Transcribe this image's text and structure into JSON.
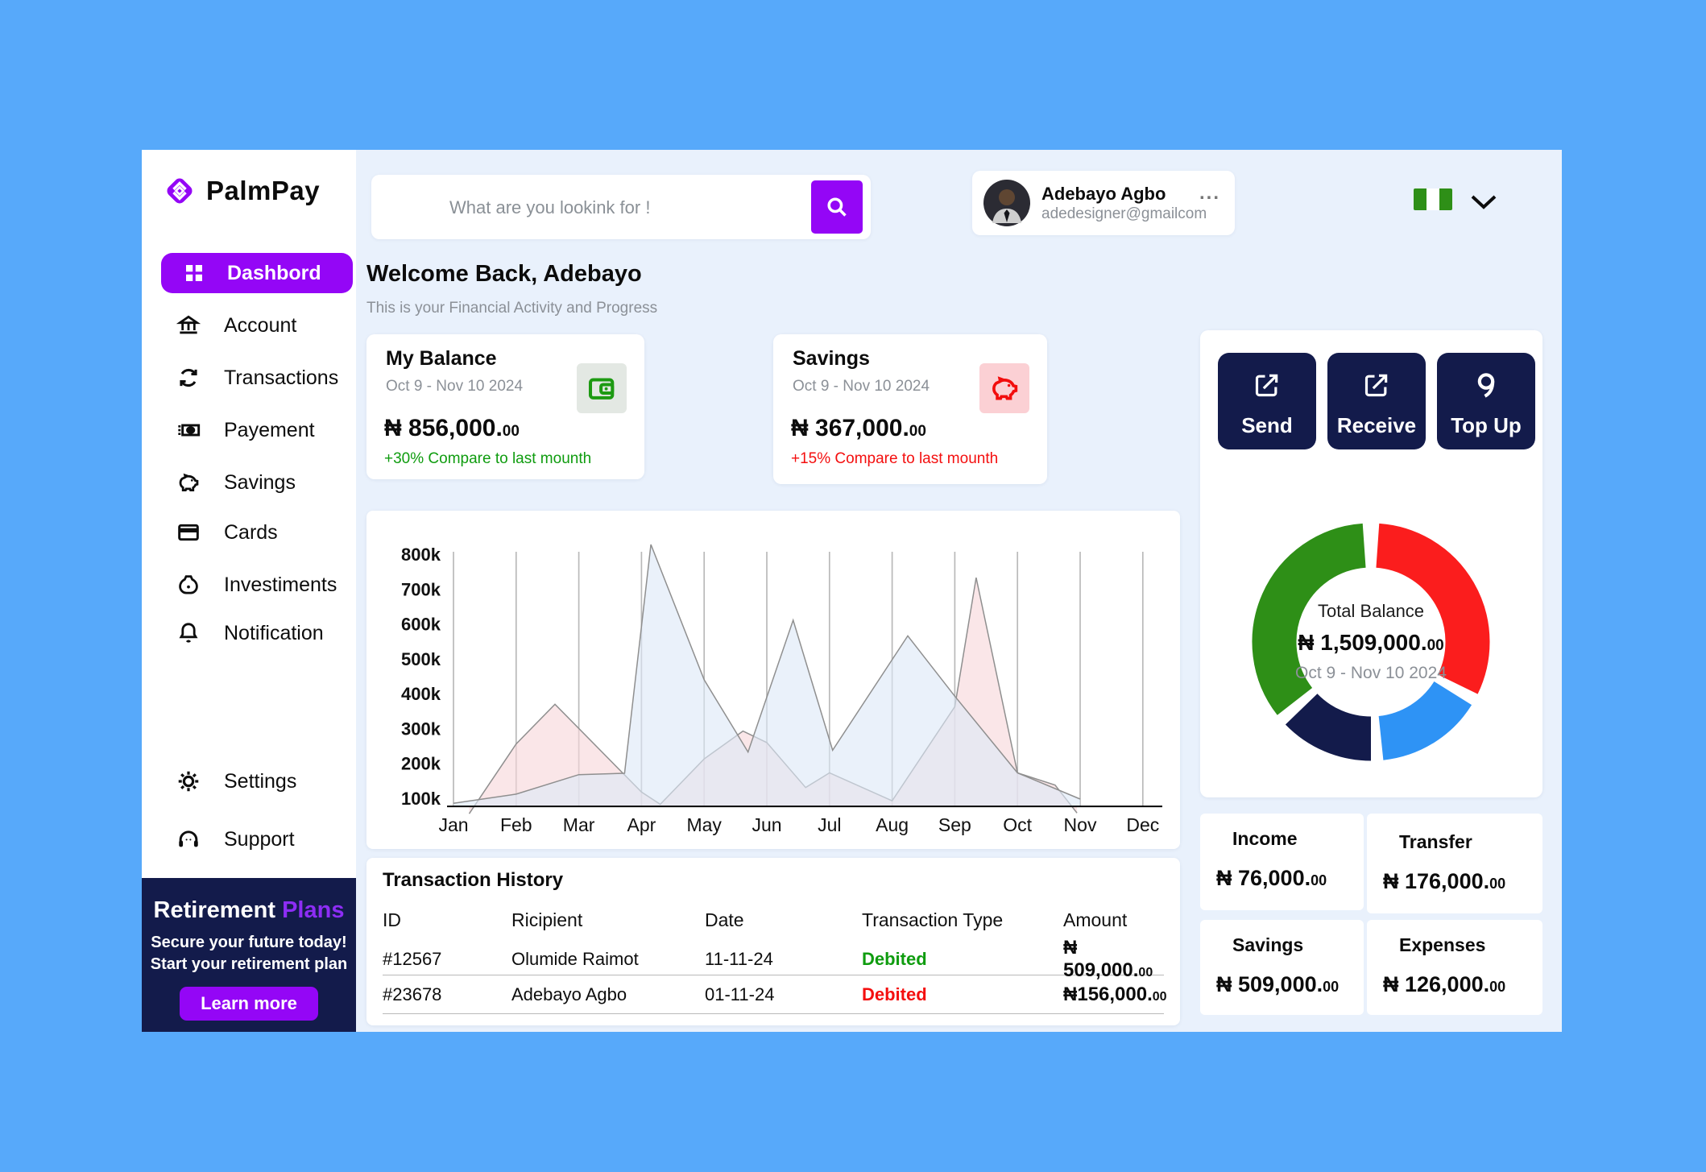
{
  "colors": {
    "outer_bg": "#57a9fa",
    "window_bg": "#e9f1fc",
    "purple": "#9406f6",
    "navy": "#131b4b",
    "green": "#2e8f17",
    "red": "#fb1d1d",
    "blue": "#2e93f5",
    "gray_text": "#8b9097",
    "positive_green": "#0f9c0f",
    "negative_red": "#f40f0f"
  },
  "brand": {
    "name": "PalmPay"
  },
  "topbar": {
    "search_placeholder": "What are you lookink for !",
    "profile": {
      "name": "Adebayo Agbo",
      "email": "adedesigner@gmailcom",
      "more": "..."
    }
  },
  "sidebar": {
    "items": [
      {
        "label": "Dashbord",
        "icon": "grid-icon",
        "active": true
      },
      {
        "label": "Account",
        "icon": "bank-icon"
      },
      {
        "label": "Transactions",
        "icon": "refresh-icon"
      },
      {
        "label": "Payement",
        "icon": "banknote-icon"
      },
      {
        "label": "Savings",
        "icon": "piggy-bank-icon"
      },
      {
        "label": "Cards",
        "icon": "credit-card-icon"
      },
      {
        "label": "Investiments",
        "icon": "money-bag-icon"
      },
      {
        "label": "Notification",
        "icon": "bell-icon"
      },
      {
        "label": "Settings",
        "icon": "gear-icon"
      },
      {
        "label": "Support",
        "icon": "headset-icon"
      }
    ],
    "retirement": {
      "title_white": "Retirement",
      "title_purple": " Plans",
      "line1": "Secure your future today!",
      "line2": "Start your retirement plan",
      "button": "Learn more"
    }
  },
  "main": {
    "welcome_title": "Welcome Back, Adebayo",
    "welcome_subtitle": "This is your Financial Activity and Progress",
    "balance_cards": [
      {
        "title": "My Balance",
        "period": "Oct 9 - Nov 10 2024",
        "icon": "wallet-icon",
        "cur": "₦",
        "val": " 856,000.",
        "dec": "00",
        "change": "+30% Compare to last mounth",
        "change_color": "#0f9c0f",
        "badge_bg": "#e3e8e3",
        "badge_color": "#1d9a12"
      },
      {
        "title": "Savings",
        "period": "Oct 9 - Nov 10 2024",
        "icon": "piggy-bank-icon",
        "cur": "₦",
        "val": " 367,000.",
        "dec": "00",
        "change": "+15% Compare to last mounth",
        "change_color": "#f40f0f",
        "badge_bg": "#fbd0d4",
        "badge_color": "#f20d0d"
      }
    ],
    "transactions": {
      "title": "Transaction History",
      "headers": [
        "ID",
        "Ricipient",
        "Date",
        "Transaction Type",
        "Amount"
      ],
      "rows": [
        {
          "id": "#12567",
          "recipient": "Olumide Raimot",
          "date": "11-11-24",
          "type": "Debited",
          "type_color": "#0f9c0f",
          "cur": "₦",
          "val": " 509,000.",
          "dec": "00"
        },
        {
          "id": "#23678",
          "recipient": "Adebayo Agbo",
          "date": "01-11-24",
          "type": "Debited",
          "type_color": "#f40f0f",
          "cur": "₦",
          "val": "156,000.",
          "dec": "00"
        }
      ]
    }
  },
  "right_panel": {
    "actions": [
      {
        "label": "Send",
        "icon": "send-external-icon"
      },
      {
        "label": "Receive",
        "icon": "receive-external-icon"
      },
      {
        "label": "Top Up",
        "icon": "top-up-icon"
      }
    ],
    "legend_cards": [
      {
        "label": "Income",
        "dot_color": "#2e8f17",
        "cur": "₦",
        "val": " 76,000.",
        "dec": "00"
      },
      {
        "label": "Transfer",
        "dot_color": "#2e93f5",
        "cur": "₦",
        "val": " 176,000.",
        "dec": "00"
      },
      {
        "label": "Savings",
        "dot_color": "#fb1d1d",
        "cur": "₦",
        "val": " 509,000.",
        "dec": "00"
      },
      {
        "label": "Expenses",
        "dot_color": "#131b4b",
        "cur": "₦",
        "val": " 126,000.",
        "dec": "00"
      }
    ]
  },
  "chart_data": [
    {
      "type": "area",
      "x_labels": [
        "Jan",
        "Feb",
        "Mar",
        "Apr",
        "May",
        "Jun",
        "Jul",
        "Aug",
        "Sep",
        "Oct",
        "Nov",
        "Dec"
      ],
      "y_ticks": [
        "100k",
        "200k",
        "300k",
        "400k",
        "500k",
        "600k",
        "700k",
        "800k"
      ],
      "ylabel": "",
      "xlabel": "",
      "ylim_k": [
        79,
        860
      ],
      "grid": "vertical-monthly",
      "series": [
        {
          "name": "series-pink",
          "fill": "#f7d7da",
          "stroke": "#8f8f8f",
          "points_month_valueK": [
            [
              0.25,
              58
            ],
            [
              1,
              258
            ],
            [
              1.62,
              372
            ],
            [
              3,
              120
            ],
            [
              3.3,
              85
            ],
            [
              4,
              215
            ],
            [
              4.62,
              295
            ],
            [
              5,
              262
            ],
            [
              5.62,
              133
            ],
            [
              6,
              175
            ],
            [
              7,
              95
            ],
            [
              8,
              365
            ],
            [
              8.34,
              735
            ],
            [
              9,
              175
            ],
            [
              9.6,
              140
            ],
            [
              9.95,
              60
            ]
          ]
        },
        {
          "name": "series-blue",
          "fill": "#dde9f7",
          "stroke": "#8f8f8f",
          "points_month_valueK": [
            [
              0,
              88
            ],
            [
              1,
              114
            ],
            [
              2,
              170
            ],
            [
              2.73,
              174
            ],
            [
              3.15,
              830
            ],
            [
              4,
              442
            ],
            [
              4.7,
              235
            ],
            [
              5.42,
              613
            ],
            [
              6.05,
              240
            ],
            [
              7.25,
              568
            ],
            [
              8,
              395
            ],
            [
              9,
              175
            ],
            [
              10,
              100
            ]
          ]
        }
      ]
    },
    {
      "type": "donut",
      "center_label": "Total Balance",
      "center_cur": "₦",
      "center_val": " 1,509,000.",
      "center_dec": "00",
      "period": "Oct 9 - Nov 10 2024",
      "segments": [
        {
          "label": "Savings",
          "color": "#fb1d1d",
          "start_deg": 4,
          "sweep_deg": 112
        },
        {
          "label": "Transfer",
          "color": "#2e93f5",
          "start_deg": 122,
          "sweep_deg": 52
        },
        {
          "label": "Expenses",
          "color": "#131b4b",
          "start_deg": 180,
          "sweep_deg": 46
        },
        {
          "label": "Income",
          "color": "#2e8f17",
          "start_deg": 232,
          "sweep_deg": 124
        }
      ]
    }
  ]
}
